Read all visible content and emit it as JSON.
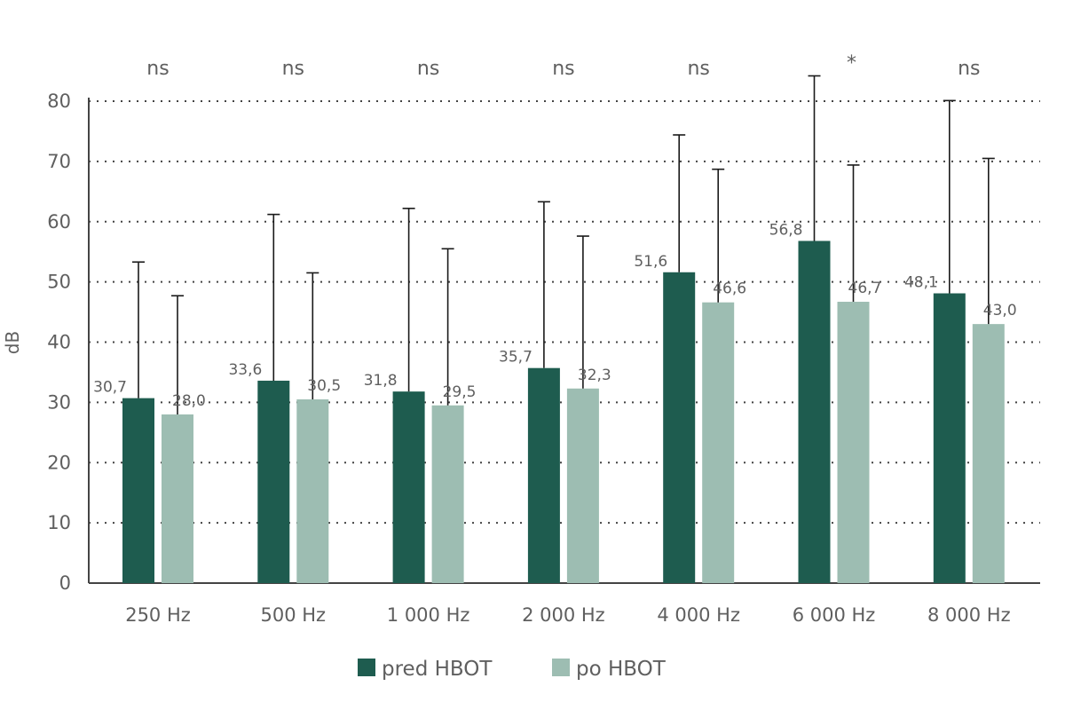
{
  "chart_data": {
    "type": "bar",
    "title": "",
    "xlabel": "",
    "ylabel": "dB",
    "ylim": [
      0,
      80
    ],
    "yticks": [
      0,
      10,
      20,
      30,
      40,
      50,
      60,
      70,
      80
    ],
    "grid": true,
    "legend_position": "bottom",
    "categories": [
      "250 Hz",
      "500 Hz",
      "1 000 Hz",
      "2 000 Hz",
      "4 000 Hz",
      "6 000 Hz",
      "8 000 Hz"
    ],
    "series": [
      {
        "name": "pred HBOT",
        "color": "#1e5c4f",
        "values": [
          30.7,
          33.6,
          31.8,
          35.7,
          51.6,
          56.8,
          48.1
        ],
        "labels": [
          "30,7",
          "33,6",
          "31,8",
          "35,7",
          "51,6",
          "56,8",
          "48,1"
        ],
        "error_upper": [
          53.3,
          61.2,
          62.2,
          63.3,
          74.4,
          84.2,
          80.1
        ]
      },
      {
        "name": "po HBOT",
        "color": "#9dbdb2",
        "values": [
          28.0,
          30.5,
          29.5,
          32.3,
          46.6,
          46.7,
          43.0
        ],
        "labels": [
          "28,0",
          "30,5",
          "29,5",
          "32,3",
          "46,6",
          "46,7",
          "43,0"
        ],
        "error_upper": [
          47.7,
          51.5,
          55.5,
          57.6,
          68.7,
          69.4,
          70.5
        ]
      }
    ],
    "significance": [
      "ns",
      "ns",
      "ns",
      "ns",
      "ns",
      "*",
      "ns"
    ]
  }
}
